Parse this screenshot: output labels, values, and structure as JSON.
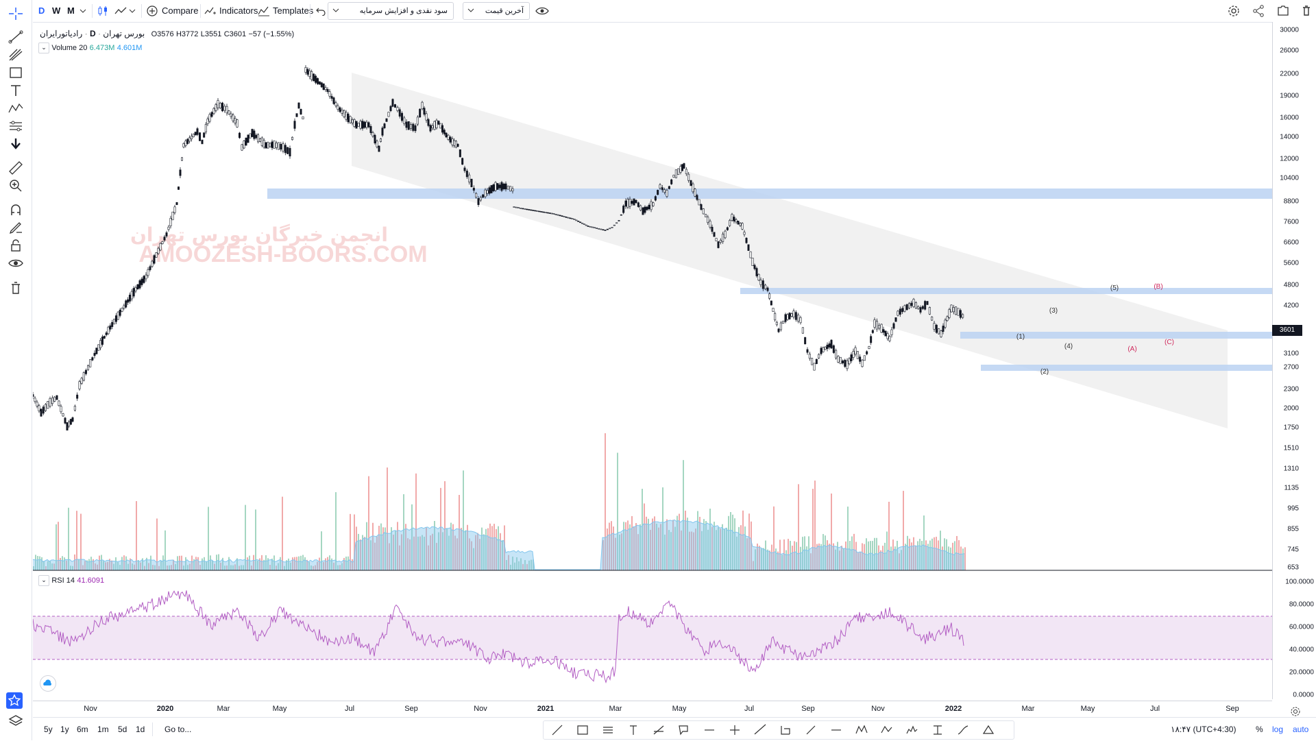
{
  "toolbar": {
    "intervals": [
      "D",
      "W",
      "M"
    ],
    "compare_label": "Compare",
    "indicators_label": "Indicators",
    "templates_label": "Templates",
    "preset_dropdown": "سود نقدی و افزایش سرمایه",
    "price_dropdown": "آخرین قیمت"
  },
  "symbol": {
    "name": "رادیاتورایران",
    "interval": "D",
    "exchange": "بورس تهران",
    "open": "O3576",
    "high": "H3772",
    "low": "L3551",
    "close": "C3601",
    "change": "−57 (−1.55%)"
  },
  "volume_legend": {
    "label": "Volume 20",
    "value1": "6.473M",
    "value2": "4.601M"
  },
  "rsi_legend": {
    "label": "RSI 14",
    "value": "41.6091"
  },
  "watermark": {
    "line1": "انجمن خبرگان بورس تهران",
    "line2": "AMOOZESH-BOORS.COM"
  },
  "price_axis": [
    "30000",
    "26000",
    "22000",
    "19000",
    "16000",
    "14000",
    "12000",
    "10400",
    "8800",
    "7600",
    "6600",
    "5600",
    "4800",
    "4200",
    "3601",
    "3100",
    "2700",
    "2300",
    "2000",
    "1750",
    "1510",
    "1310",
    "1135",
    "995",
    "855",
    "745",
    "653"
  ],
  "current_price": "3601",
  "rsi_axis": [
    "100.0000",
    "80.0000",
    "60.0000",
    "40.0000",
    "20.0000",
    "0.0000"
  ],
  "time_axis": [
    "Nov",
    "2020",
    "Mar",
    "May",
    "Jul",
    "Sep",
    "Nov",
    "2021",
    "Mar",
    "May",
    "Jul",
    "Sep",
    "Nov",
    "2022",
    "Mar",
    "May",
    "Jul",
    "Sep"
  ],
  "wave_labels": {
    "w1": "(1)",
    "w2": "(2)",
    "w3": "(3)",
    "w4": "(4)",
    "w5": "(5)",
    "a": "(A)",
    "b": "(B)",
    "c": "(C)"
  },
  "bottom": {
    "ranges": [
      "5y",
      "1y",
      "6m",
      "1m",
      "5d",
      "1d"
    ],
    "goto": "Go to...",
    "clock": "۱۸:۴۷ (UTC+4:30)",
    "percent": "%",
    "log": "log",
    "auto": "auto"
  },
  "colors": {
    "accent": "#2962ff",
    "zone": "#bbd2f2",
    "channel": "#e9e9e9",
    "vol_up": "#a4d6c1",
    "vol_down": "#f1a9a9",
    "vol_ma": "#82c6ee",
    "rsi_line": "#b25dc3",
    "rsi_band": "#efe0f3",
    "wave_red": "#d0285c"
  }
}
